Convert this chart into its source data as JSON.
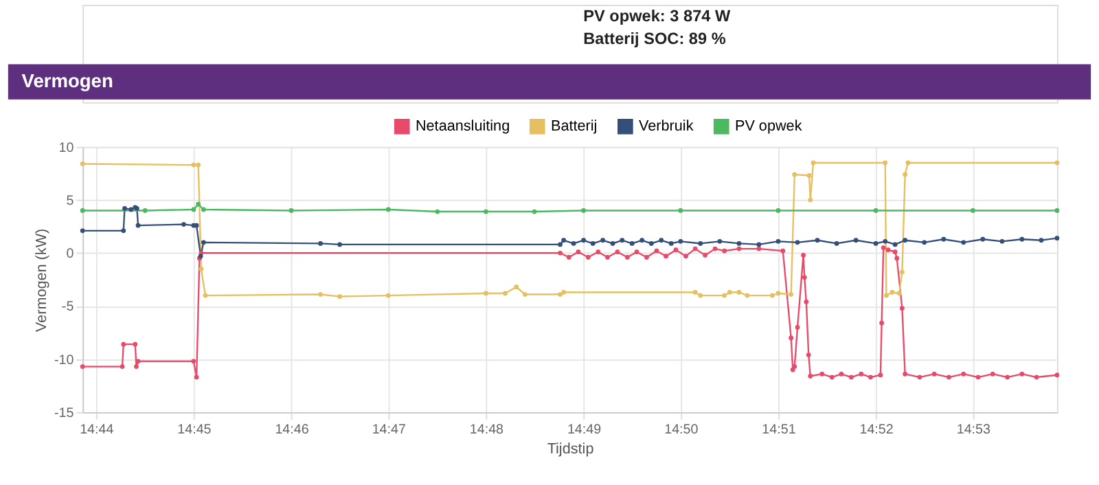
{
  "chart_data": {
    "type": "line",
    "title": "Vermogen",
    "xlabel": "Tijdstip",
    "ylabel": "Vermogen (kW)",
    "annotations": [
      "PV opwek: 3 874 W",
      "Batterij SOC: 89 %"
    ],
    "xlim": [
      14.731,
      14.8977
    ],
    "ylim": [
      -15,
      10
    ],
    "xticks": [
      {
        "value": 14.7333,
        "label": "14:44"
      },
      {
        "value": 14.75,
        "label": "14:45"
      },
      {
        "value": 14.7667,
        "label": "14:46"
      },
      {
        "value": 14.7833,
        "label": "14:47"
      },
      {
        "value": 14.8,
        "label": "14:48"
      },
      {
        "value": 14.8167,
        "label": "14:49"
      },
      {
        "value": 14.8333,
        "label": "14:50"
      },
      {
        "value": 14.85,
        "label": "14:51"
      },
      {
        "value": 14.8667,
        "label": "14:52"
      },
      {
        "value": 14.8833,
        "label": "14:53"
      }
    ],
    "yticks": [
      -15,
      -10,
      -5,
      0,
      5,
      10
    ],
    "grid": true,
    "legend": "top",
    "marker": "circle",
    "line_style": "solid",
    "series": [
      {
        "name": "Netaansluiting",
        "color": "#e84a6a",
        "x": [
          14.731,
          14.7378,
          14.738,
          14.74,
          14.7402,
          14.7405,
          14.75,
          14.7505,
          14.751,
          14.7513,
          14.8127,
          14.8142,
          14.8158,
          14.8175,
          14.8192,
          14.8208,
          14.8225,
          14.8242,
          14.8258,
          14.8275,
          14.8292,
          14.8308,
          14.8325,
          14.8342,
          14.8358,
          14.8375,
          14.8392,
          14.8408,
          14.8433,
          14.8467,
          14.8508,
          14.8522,
          14.8525,
          14.8528,
          14.8533,
          14.8543,
          14.8545,
          14.8548,
          14.8552,
          14.8555,
          14.8575,
          14.8592,
          14.8608,
          14.8625,
          14.8642,
          14.8658,
          14.8675,
          14.8677,
          14.868,
          14.8688,
          14.87,
          14.8703,
          14.8712,
          14.8717,
          14.8742,
          14.8767,
          14.8792,
          14.8817,
          14.8842,
          14.8867,
          14.8892,
          14.8917,
          14.8942,
          14.8977
        ],
        "values": [
          -10.7,
          -10.7,
          -8.6,
          -8.6,
          -10.7,
          -10.2,
          -10.2,
          -11.7,
          -0.5,
          0.0,
          0.0,
          -0.4,
          0.1,
          -0.4,
          0.1,
          -0.4,
          0.1,
          -0.4,
          0.1,
          -0.4,
          0.2,
          -0.3,
          0.3,
          -0.3,
          0.4,
          -0.2,
          0.4,
          0.2,
          0.4,
          0.4,
          0.2,
          -8.0,
          -11.0,
          -10.7,
          -7.0,
          -0.2,
          -2.3,
          -4.6,
          -9.6,
          -11.6,
          -11.4,
          -11.7,
          -11.4,
          -11.7,
          -11.4,
          -11.7,
          -11.5,
          -6.6,
          0.5,
          0.3,
          0.1,
          -0.5,
          -5.2,
          -11.4,
          -11.7,
          -11.4,
          -11.7,
          -11.4,
          -11.7,
          -11.4,
          -11.7,
          -11.4,
          -11.7,
          -11.5
        ]
      },
      {
        "name": "Batterij",
        "color": "#e6c060",
        "x": [
          14.731,
          14.75,
          14.7508,
          14.7513,
          14.752,
          14.7717,
          14.775,
          14.7833,
          14.8,
          14.8033,
          14.8052,
          14.8067,
          14.8127,
          14.8133,
          14.8358,
          14.8367,
          14.8408,
          14.8417,
          14.8433,
          14.8447,
          14.849,
          14.85,
          14.8522,
          14.8528,
          14.8553,
          14.8555,
          14.856,
          14.8683,
          14.8685,
          14.8695,
          14.8707,
          14.8712,
          14.8717,
          14.8722,
          14.8977
        ],
        "values": [
          8.4,
          8.3,
          8.3,
          -1.5,
          -4.0,
          -3.9,
          -4.1,
          -4.0,
          -3.8,
          -3.8,
          -3.2,
          -3.9,
          -3.9,
          -3.7,
          -3.7,
          -4.0,
          -4.0,
          -3.7,
          -3.7,
          -4.0,
          -4.0,
          -3.8,
          -3.9,
          7.4,
          7.3,
          5.0,
          8.5,
          8.5,
          -4.0,
          -3.7,
          -3.8,
          -1.8,
          7.4,
          8.5,
          8.5
        ]
      },
      {
        "name": "Verbruik",
        "color": "#34507a",
        "x": [
          14.731,
          14.738,
          14.7382,
          14.7393,
          14.74,
          14.7403,
          14.7405,
          14.7483,
          14.75,
          14.7505,
          14.7512,
          14.7517,
          14.7717,
          14.775,
          14.8127,
          14.8133,
          14.815,
          14.8167,
          14.8183,
          14.82,
          14.8217,
          14.8233,
          14.825,
          14.8267,
          14.8283,
          14.83,
          14.8317,
          14.8333,
          14.8367,
          14.84,
          14.8433,
          14.8467,
          14.85,
          14.8533,
          14.8567,
          14.86,
          14.8633,
          14.8667,
          14.8683,
          14.87,
          14.8717,
          14.875,
          14.8783,
          14.8817,
          14.885,
          14.8883,
          14.8917,
          14.895,
          14.8977
        ],
        "values": [
          2.1,
          2.1,
          4.2,
          4.1,
          4.3,
          4.2,
          2.6,
          2.7,
          2.6,
          2.6,
          -0.3,
          1.0,
          0.9,
          0.8,
          0.8,
          1.2,
          0.9,
          1.2,
          0.9,
          1.2,
          0.9,
          1.2,
          0.9,
          1.2,
          0.9,
          1.2,
          0.9,
          1.1,
          0.9,
          1.1,
          0.9,
          0.8,
          1.1,
          1.0,
          1.2,
          0.9,
          1.2,
          0.9,
          1.1,
          0.8,
          1.2,
          1.0,
          1.3,
          1.0,
          1.3,
          1.1,
          1.3,
          1.2,
          1.4
        ]
      },
      {
        "name": "PV opwek",
        "color": "#4cb860",
        "x": [
          14.731,
          14.7417,
          14.75,
          14.7508,
          14.7517,
          14.7667,
          14.7833,
          14.7917,
          14.8,
          14.8083,
          14.8167,
          14.8333,
          14.85,
          14.8667,
          14.8833,
          14.8977
        ],
        "values": [
          4.0,
          4.0,
          4.1,
          4.6,
          4.1,
          4.0,
          4.1,
          3.9,
          3.9,
          3.9,
          4.0,
          4.0,
          4.0,
          4.0,
          4.0,
          4.0
        ]
      }
    ]
  }
}
